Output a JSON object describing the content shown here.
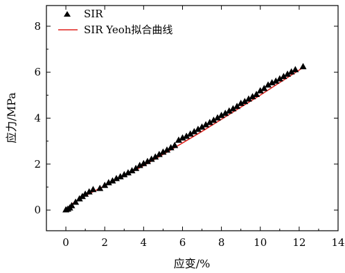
{
  "chart_data": {
    "type": "scatter",
    "xlabel": "应变/%",
    "ylabel": "应力/MPa",
    "xlim": [
      -1,
      14
    ],
    "ylim": [
      -0.9,
      8.9
    ],
    "xticks": [
      0,
      2,
      4,
      6,
      8,
      10,
      12,
      14
    ],
    "yticks": [
      0,
      2,
      4,
      6,
      8
    ],
    "grid": false,
    "legend": "top-left",
    "series": [
      {
        "name": "SIR",
        "kind": "scatter",
        "marker": "triangle",
        "color": "#000000",
        "x": [
          0,
          0.1,
          0.2,
          0.3,
          0.5,
          0.7,
          0.85,
          1.0,
          1.2,
          1.4,
          1.75,
          2.0,
          2.2,
          2.4,
          2.6,
          2.8,
          3.0,
          3.2,
          3.4,
          3.6,
          3.8,
          4.0,
          4.2,
          4.4,
          4.6,
          4.8,
          5.0,
          5.2,
          5.4,
          5.6,
          5.8,
          6.0,
          6.2,
          6.4,
          6.6,
          6.8,
          7.0,
          7.2,
          7.4,
          7.6,
          7.8,
          8.0,
          8.2,
          8.4,
          8.6,
          8.8,
          9.0,
          9.2,
          9.4,
          9.6,
          9.8,
          10.0,
          10.2,
          10.4,
          10.6,
          10.8,
          11.0,
          11.2,
          11.4,
          11.6,
          11.8,
          12.2
        ],
        "y": [
          0.02,
          0.05,
          0.1,
          0.2,
          0.35,
          0.5,
          0.6,
          0.7,
          0.8,
          0.9,
          0.95,
          1.08,
          1.2,
          1.28,
          1.38,
          1.46,
          1.55,
          1.63,
          1.72,
          1.82,
          1.95,
          2.03,
          2.12,
          2.22,
          2.32,
          2.43,
          2.53,
          2.62,
          2.72,
          2.82,
          3.05,
          3.15,
          3.22,
          3.32,
          3.42,
          3.52,
          3.62,
          3.72,
          3.82,
          3.92,
          4.02,
          4.13,
          4.22,
          4.32,
          4.42,
          4.52,
          4.65,
          4.73,
          4.84,
          4.94,
          5.04,
          5.2,
          5.3,
          5.45,
          5.55,
          5.62,
          5.72,
          5.82,
          5.92,
          6.02,
          6.12,
          6.25
        ]
      },
      {
        "name": "SIR Yeoh拟合曲线",
        "kind": "line",
        "color": "#e0201b",
        "x": [
          0,
          0.25,
          0.5,
          1,
          2,
          3,
          4,
          5,
          6,
          7,
          8,
          9,
          10,
          11,
          12.2
        ],
        "y": [
          0,
          0.22,
          0.38,
          0.62,
          1.06,
          1.48,
          1.93,
          2.42,
          2.92,
          3.42,
          3.95,
          4.48,
          5.0,
          5.55,
          6.2
        ]
      }
    ]
  }
}
